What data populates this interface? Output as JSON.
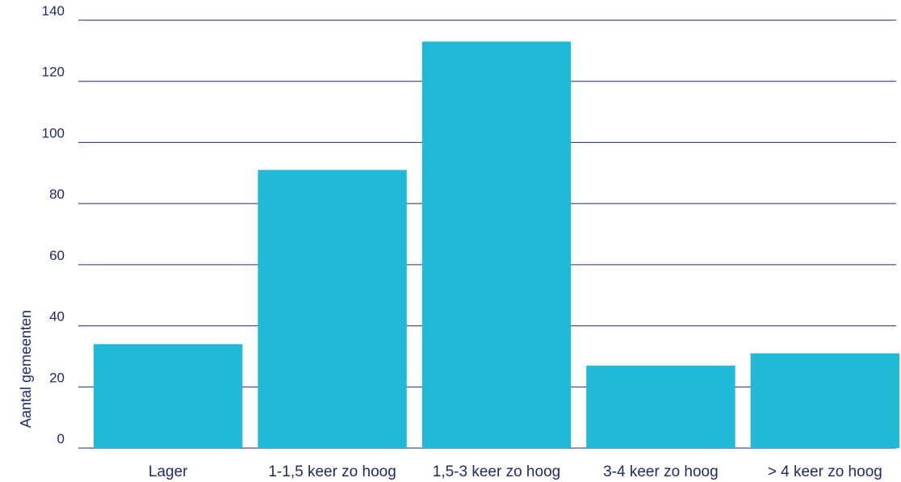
{
  "chart_data": {
    "type": "bar",
    "categories": [
      "Lager",
      "1-1,5 keer zo hoog",
      "1,5-3 keer zo hoog",
      "3-4 keer zo hoog",
      "> 4 keer zo hoog"
    ],
    "values": [
      34,
      91,
      133,
      27,
      31
    ],
    "xlabel": "",
    "ylabel": "Aantal gemeenten",
    "ylim": [
      0,
      140
    ],
    "yticks": [
      0,
      20,
      40,
      60,
      80,
      100,
      120,
      140
    ],
    "grid": true,
    "colors": {
      "bar": "#22b8d8",
      "text": "#1f2a6b",
      "gridline": "#1f2a6b"
    }
  }
}
